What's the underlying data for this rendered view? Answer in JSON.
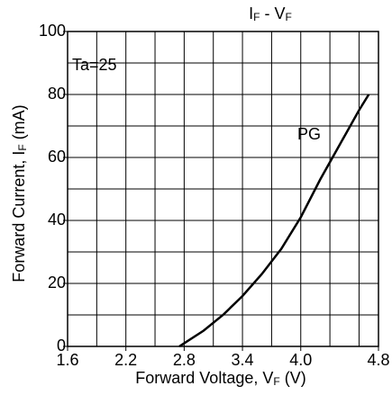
{
  "chart_data": {
    "type": "line",
    "title": [
      "I",
      "F",
      " - V",
      "F"
    ],
    "x_label": [
      "Forward Voltage, V",
      "F",
      " (V)"
    ],
    "y_label": [
      "Forward Current, I",
      "F",
      " (mA)"
    ],
    "annotation": "Ta=25",
    "xlim": [
      1.6,
      4.8
    ],
    "ylim": [
      0,
      100
    ],
    "xticks": [
      1.6,
      2.2,
      2.8,
      3.4,
      {
        "value": 4.0,
        "label": "4.0"
      },
      4.8
    ],
    "yticks": [
      0,
      20,
      40,
      60,
      80,
      100
    ],
    "xgrid": [
      1.6,
      1.9,
      2.2,
      2.5,
      2.8,
      3.1,
      3.4,
      3.7,
      4.0,
      4.3,
      4.6,
      4.8
    ],
    "ygrid": [
      0,
      10,
      20,
      30,
      40,
      50,
      60,
      70,
      80,
      90,
      100
    ],
    "grid": true,
    "series": [
      {
        "name": "PG",
        "color": "#000000",
        "x": [
          2.75,
          3.0,
          3.2,
          3.4,
          3.6,
          3.8,
          4.0,
          4.2,
          4.4,
          4.6,
          4.7
        ],
        "values": [
          0,
          5,
          10,
          16,
          23,
          31,
          41,
          53,
          64,
          75,
          80
        ]
      }
    ]
  }
}
